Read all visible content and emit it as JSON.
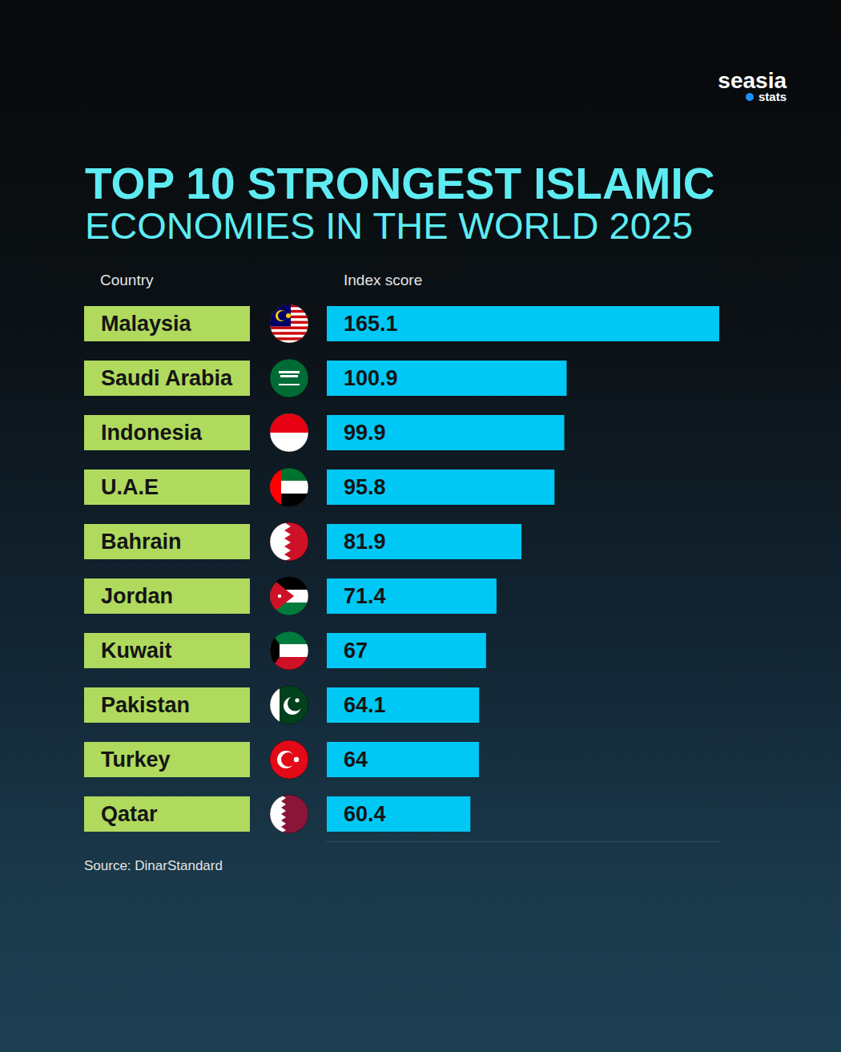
{
  "chart_data": {
    "type": "bar",
    "orientation": "horizontal",
    "title": "TOP 10 STRONGEST ISLAMIC",
    "subtitle": "ECONOMIES IN THE WORLD 2025",
    "y_label": "Country",
    "x_label": "Index score",
    "source": "Source: DinarStandard",
    "logo": "seasia",
    "logo_sub": "stats",
    "categories": [
      "Malaysia",
      "Saudi Arabia",
      "Indonesia",
      "U.A.E",
      "Bahrain",
      "Jordan",
      "Kuwait",
      "Pakistan",
      "Turkey",
      "Qatar"
    ],
    "values": [
      165.1,
      100.9,
      99.9,
      95.8,
      81.9,
      71.4,
      67,
      64.1,
      64,
      60.4
    ],
    "color": "#00c8f5",
    "xlim": [
      0,
      165.1
    ],
    "xticks": [],
    "grid": false,
    "data_labels": true,
    "tick_labels": "y"
  }
}
